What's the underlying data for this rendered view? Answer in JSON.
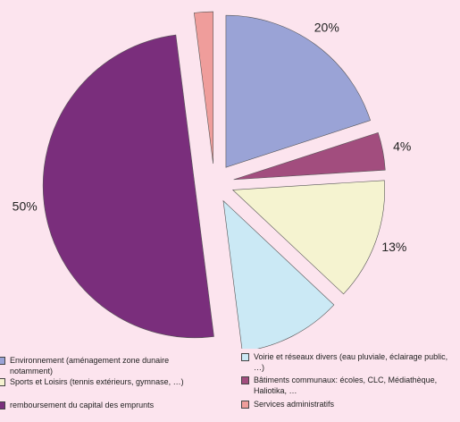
{
  "chart_data": {
    "type": "pie",
    "categories": [
      "Environnement (aménagement zone dunaire notamment)",
      "Bâtiments communaux: écoles, CLC, Médiathèque, Haliotika, …",
      "Sports et Loisirs (tennis extérieurs, gymnase, …)",
      "Voirie et réseaux divers (eau pluviale, éclairage public, …)",
      "remboursement du capital des emprunts",
      "Services administratifs"
    ],
    "values": [
      20,
      4,
      13,
      11,
      50,
      2
    ],
    "value_labels": [
      "20%",
      "4%",
      "13%",
      "11%",
      "50%",
      "2%"
    ],
    "colors": [
      "#9aa3d6",
      "#a24d7e",
      "#f5f3d0",
      "#cbe9f5",
      "#7a2e7c",
      "#ef9d9b"
    ],
    "legend": "bottom"
  }
}
